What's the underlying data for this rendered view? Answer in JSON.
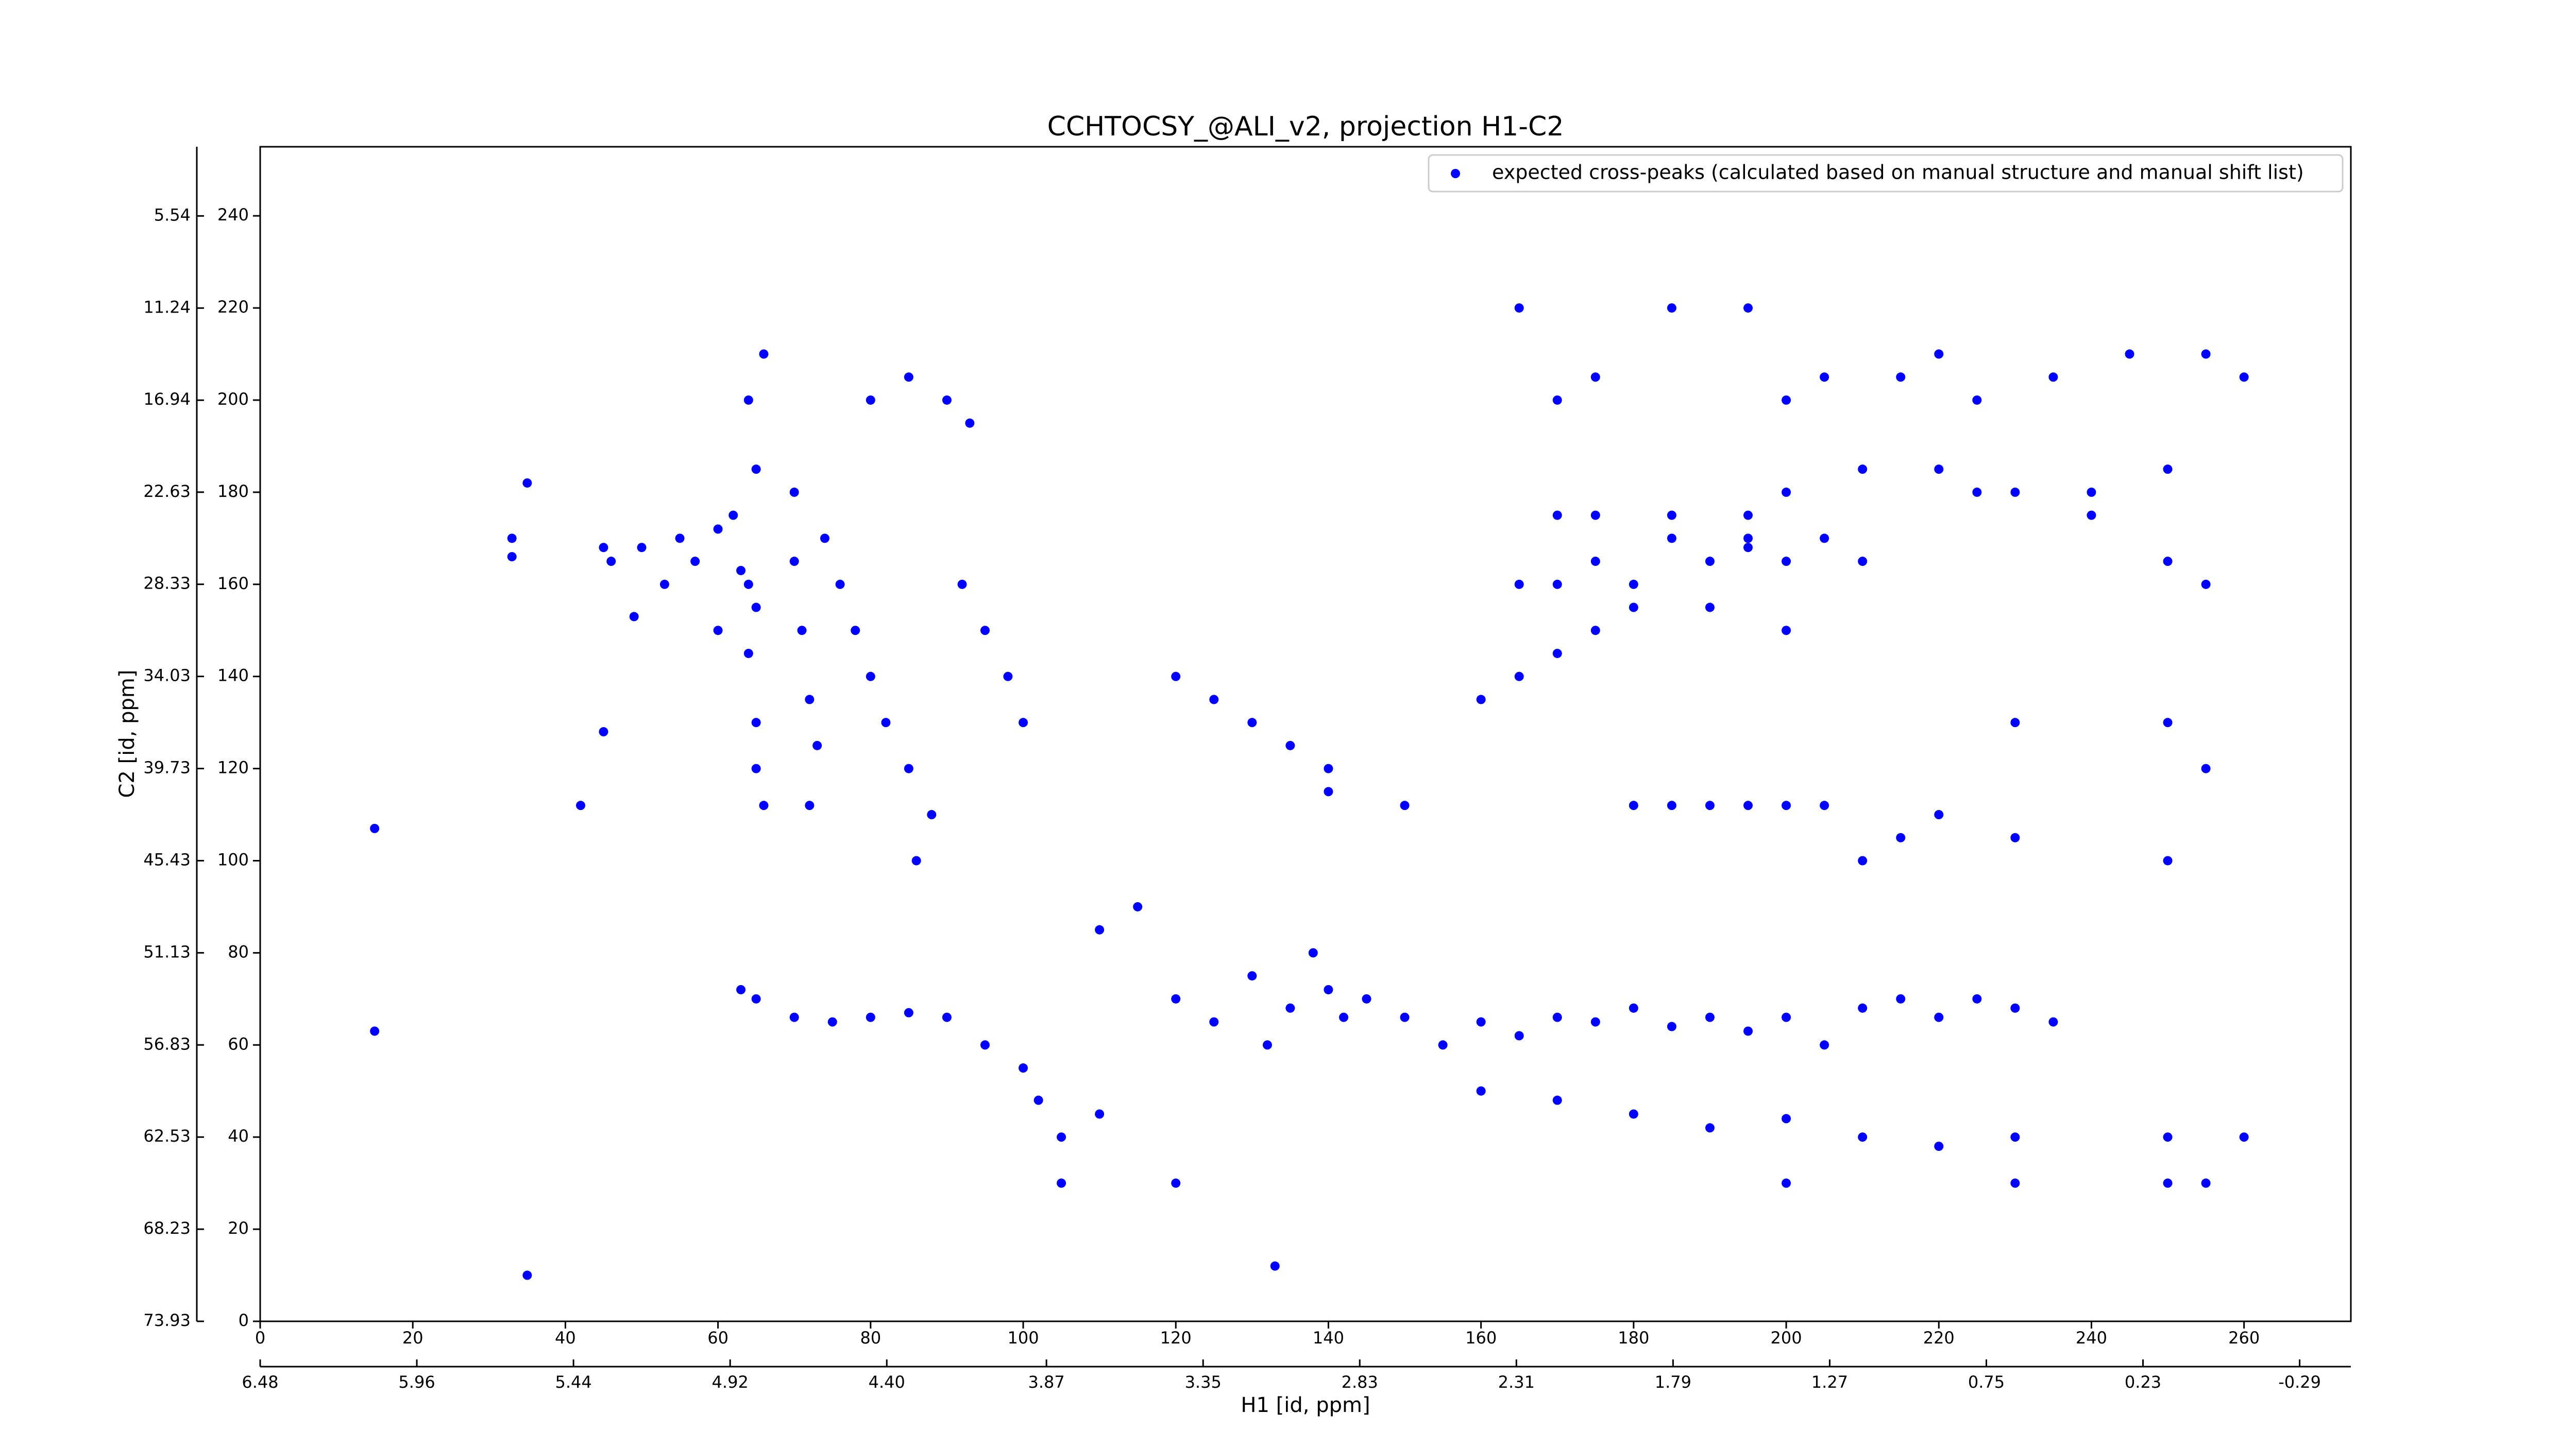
{
  "chart_data": {
    "type": "scatter",
    "title": "CCHTOCSY_@ALI_v2, projection H1-C2",
    "xlabel": "H1 [id, ppm]",
    "ylabel": "C2 [id, ppm]",
    "xlim": [
      0,
      274
    ],
    "xticks": [
      0,
      20,
      40,
      60,
      80,
      100,
      120,
      140,
      160,
      180,
      200,
      220,
      240,
      260
    ],
    "ylim": [
      0,
      255
    ],
    "yticks": [
      0,
      20,
      40,
      60,
      80,
      100,
      120,
      140,
      160,
      180,
      200,
      220,
      240
    ],
    "x2lim": [
      6.48,
      -0.46
    ],
    "x2ticks": [
      6.48,
      5.96,
      5.44,
      4.92,
      {
        "value": 4.4,
        "label": "4.40"
      },
      3.87,
      3.35,
      2.83,
      2.31,
      1.79,
      1.27,
      0.75,
      0.23,
      -0.29
    ],
    "y2lim": [
      73.93,
      1.26
    ],
    "y2ticks": [
      73.93,
      68.23,
      62.53,
      56.83,
      51.13,
      45.43,
      39.73,
      34.03,
      28.33,
      22.63,
      16.94,
      11.24,
      5.54
    ],
    "legend": "upper right",
    "series": [
      {
        "name": "expected cross-peaks (calculated based on manual structure and manual shift list)",
        "color": "#0000ff",
        "x": [
          15,
          15,
          35,
          33,
          33,
          45,
          46,
          45,
          42,
          49,
          50,
          53,
          55,
          57,
          60,
          60,
          62,
          63,
          64,
          65,
          64,
          65,
          65,
          66,
          65,
          64,
          66,
          70,
          70,
          71,
          72,
          73,
          72,
          74,
          76,
          78,
          80,
          82,
          85,
          80,
          85,
          90,
          93,
          92,
          95,
          98,
          100,
          88,
          86,
          63,
          65,
          70,
          75,
          80,
          85,
          90,
          95,
          100,
          102,
          105,
          110,
          110,
          115,
          120,
          125,
          130,
          132,
          135,
          138,
          140,
          142,
          145,
          150,
          155,
          160,
          165,
          170,
          175,
          180,
          185,
          190,
          195,
          200,
          205,
          210,
          215,
          220,
          225,
          230,
          235,
          160,
          170,
          180,
          190,
          200,
          210,
          220,
          230,
          250,
          260,
          250,
          255,
          230,
          200,
          140,
          150,
          180,
          185,
          190,
          195,
          200,
          205,
          160,
          165,
          170,
          175,
          170,
          175,
          180,
          185,
          190,
          195,
          200,
          205,
          210,
          180,
          190,
          200,
          175,
          185,
          195,
          195,
          170,
          165,
          200,
          210,
          220,
          225,
          230,
          240,
          240,
          250,
          255,
          250,
          200,
          205,
          215,
          220,
          225,
          235,
          245,
          255,
          260,
          185,
          195,
          165,
          170,
          175,
          140,
          135,
          130,
          125,
          120,
          230,
          250,
          255,
          250,
          230,
          215,
          210,
          220,
          133,
          120,
          105,
          35
        ],
        "y": [
          107,
          63,
          182,
          170,
          166,
          168,
          165,
          128,
          112,
          153,
          168,
          160,
          170,
          165,
          172,
          150,
          175,
          163,
          160,
          155,
          145,
          130,
          120,
          112,
          185,
          200,
          210,
          180,
          165,
          150,
          135,
          125,
          112,
          170,
          160,
          150,
          140,
          130,
          120,
          200,
          205,
          200,
          195,
          160,
          150,
          140,
          130,
          110,
          100,
          72,
          70,
          66,
          65,
          66,
          67,
          66,
          60,
          55,
          48,
          40,
          45,
          85,
          90,
          70,
          65,
          75,
          60,
          68,
          80,
          72,
          66,
          70,
          66,
          60,
          65,
          62,
          66,
          65,
          68,
          64,
          66,
          63,
          66,
          60,
          68,
          70,
          66,
          70,
          68,
          65,
          50,
          48,
          45,
          42,
          44,
          40,
          38,
          40,
          40,
          40,
          30,
          30,
          30,
          30,
          115,
          112,
          112,
          112,
          112,
          112,
          112,
          112,
          135,
          140,
          145,
          150,
          160,
          165,
          160,
          170,
          165,
          168,
          165,
          170,
          165,
          155,
          155,
          150,
          175,
          175,
          170,
          175,
          175,
          160,
          180,
          185,
          185,
          180,
          180,
          175,
          180,
          165,
          160,
          185,
          200,
          205,
          205,
          210,
          200,
          205,
          210,
          210,
          205,
          220,
          220,
          220,
          200,
          205,
          120,
          125,
          130,
          135,
          140,
          130,
          130,
          120,
          100,
          105,
          105,
          100,
          110,
          12,
          30,
          30,
          10
        ]
      }
    ]
  }
}
